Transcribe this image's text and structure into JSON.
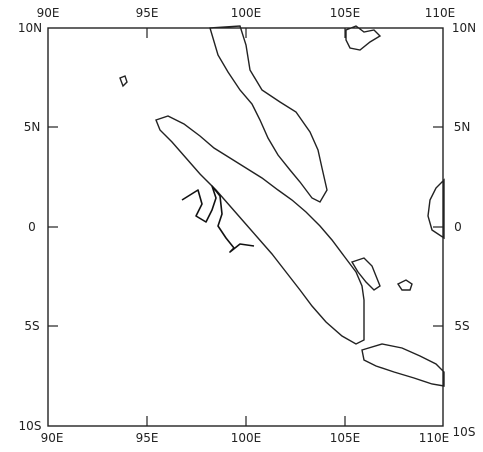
{
  "map": {
    "lon_range": [
      90,
      110
    ],
    "lat_range": [
      -10,
      10
    ],
    "lon_labels": [
      "90E",
      "95E",
      "100E",
      "105E",
      "110E"
    ],
    "lat_labels": [
      "10N",
      "5N",
      "0",
      "5S",
      "10S"
    ],
    "land_style": "dotted-fill",
    "line_color": "#222222",
    "background": "#ffffff"
  }
}
